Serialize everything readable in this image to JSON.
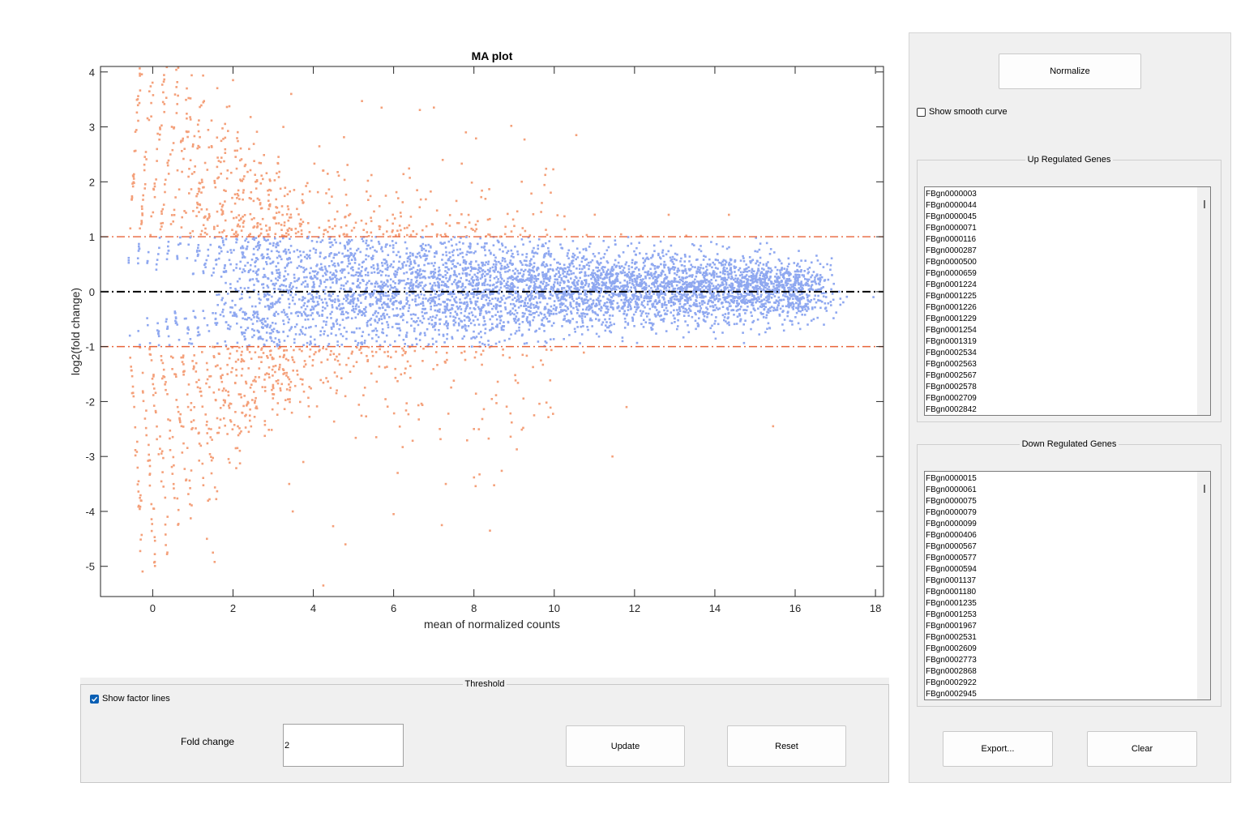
{
  "chart_data": {
    "type": "scatter",
    "title": "MA plot",
    "xlabel": "mean of normalized counts",
    "ylabel": "log2(fold change)",
    "xlim": [
      -1.3,
      18.2
    ],
    "ylim": [
      -5.55,
      4.1
    ],
    "x_ticks": [
      "0",
      "2",
      "4",
      "6",
      "8",
      "10",
      "12",
      "14",
      "16",
      "18"
    ],
    "y_ticks": [
      "4",
      "3",
      "2",
      "1",
      "0",
      "-1",
      "-2",
      "-3",
      "-4",
      "-5"
    ],
    "grid": false,
    "series": [
      {
        "color": "#f4a07a",
        "description_color_role": "significant"
      },
      {
        "color": "#8fa8f0",
        "description_color_role": "not significant"
      }
    ],
    "reference_lines": [
      {
        "y": 0,
        "color": "#000000",
        "style": "dash-dot"
      },
      {
        "y": 1,
        "color": "#e8643a",
        "style": "dash-dot"
      },
      {
        "y": -1,
        "color": "#e8643a",
        "style": "dash-dot"
      }
    ],
    "outlier_points": [
      [
        0.85,
        3.7
      ],
      [
        2.0,
        3.85
      ],
      [
        3.45,
        3.6
      ],
      [
        5.7,
        3.35
      ],
      [
        7.8,
        2.9
      ],
      [
        10.55,
        2.85
      ],
      [
        12.85,
        1.4
      ],
      [
        14.35,
        1.4
      ],
      [
        15.45,
        -2.45
      ],
      [
        11.8,
        -2.1
      ],
      [
        11.45,
        -3.0
      ],
      [
        8.4,
        -4.35
      ],
      [
        6.0,
        -4.05
      ],
      [
        4.25,
        -5.35
      ],
      [
        1.35,
        -4.5
      ],
      [
        1.5,
        -4.75
      ],
      [
        4.8,
        -4.6
      ],
      [
        7.2,
        -4.25
      ],
      [
        3.75,
        -3.1
      ],
      [
        3.4,
        -3.5
      ],
      [
        6.1,
        -3.3
      ],
      [
        7.3,
        -3.5
      ],
      [
        8.0,
        -2.5
      ],
      [
        9.5,
        -2.25
      ],
      [
        11.7,
        -0.9
      ],
      [
        17.95,
        -0.1
      ],
      [
        16.8,
        0.5
      ],
      [
        17.1,
        0.0
      ]
    ]
  },
  "threshold_panel": {
    "title": "Threshold",
    "show_factor_lines_label": "Show factor lines",
    "show_factor_lines_checked": true,
    "fold_change_label": "Fold change",
    "fold_change_value": "2",
    "update_label": "Update",
    "reset_label": "Reset"
  },
  "side_panel": {
    "normalize_label": "Normalize",
    "show_smooth_curve_label": "Show smooth curve",
    "show_smooth_curve_checked": false,
    "up_title": "Up Regulated Genes",
    "up_genes": [
      "FBgn0000003",
      "FBgn0000044",
      "FBgn0000045",
      "FBgn0000071",
      "FBgn0000116",
      "FBgn0000287",
      "FBgn0000500",
      "FBgn0000659",
      "FBgn0001224",
      "FBgn0001225",
      "FBgn0001226",
      "FBgn0001229",
      "FBgn0001254",
      "FBgn0001319",
      "FBgn0002534",
      "FBgn0002563",
      "FBgn0002567",
      "FBgn0002578",
      "FBgn0002709",
      "FBgn0002842"
    ],
    "down_title": "Down Regulated Genes",
    "down_genes": [
      "FBgn0000015",
      "FBgn0000061",
      "FBgn0000075",
      "FBgn0000079",
      "FBgn0000099",
      "FBgn0000406",
      "FBgn0000567",
      "FBgn0000577",
      "FBgn0000594",
      "FBgn0001137",
      "FBgn0001180",
      "FBgn0001235",
      "FBgn0001253",
      "FBgn0001967",
      "FBgn0002531",
      "FBgn0002609",
      "FBgn0002773",
      "FBgn0002868",
      "FBgn0002922",
      "FBgn0002945"
    ],
    "export_label": "Export...",
    "clear_label": "Clear"
  }
}
